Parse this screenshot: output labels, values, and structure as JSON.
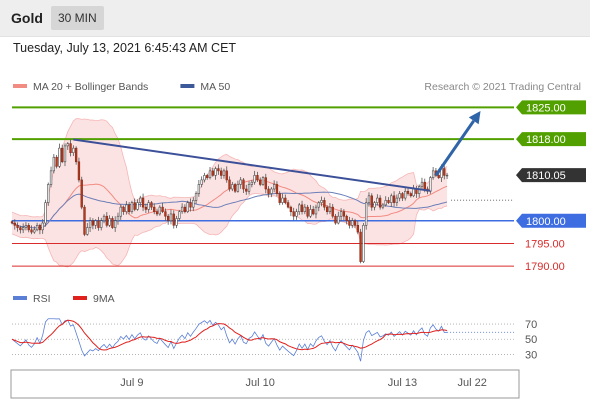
{
  "header": {
    "symbol": "Gold",
    "timeframe": "30 MIN"
  },
  "timestamp": "Tuesday, July 13, 2021 6:45:43 AM CET",
  "legend": [
    {
      "label": "MA 20 + Bollinger Bands",
      "color": "#f28b82"
    },
    {
      "label": "MA 50",
      "color": "#3c5a99"
    }
  ],
  "source": "Research © 2021 Trading Central",
  "chart_data": {
    "type": "candlestick",
    "ylim": [
      1786.5,
      1827.5
    ],
    "xlim": [
      0,
      180
    ],
    "x_ticks": [
      {
        "label": "Jul 9",
        "x": 43
      },
      {
        "label": "Jul 10",
        "x": 89
      },
      {
        "label": "Jul 13",
        "x": 140
      },
      {
        "label": "Jul 22",
        "x": 165
      }
    ],
    "levels": [
      {
        "label": "1825.00",
        "value": 1825.0,
        "kind": "resistance",
        "color": "#52a000"
      },
      {
        "label": "1818.00",
        "value": 1818.0,
        "kind": "resistance",
        "color": "#52a000"
      },
      {
        "label": "1810.05",
        "value": 1810.05,
        "kind": "last",
        "color": "#333333"
      },
      {
        "label": "1800.00",
        "value": 1800.0,
        "kind": "pivot",
        "color": "#3d6de0"
      },
      {
        "label": "1795.00",
        "value": 1795.0,
        "kind": "support",
        "color": "#d92b2b"
      },
      {
        "label": "1790.00",
        "value": 1790.0,
        "kind": "support",
        "color": "#d92b2b"
      }
    ],
    "trendline": {
      "from": [
        22,
        1817.9
      ],
      "to": [
        150,
        1806.6
      ]
    },
    "target_arrow": {
      "from": [
        152,
        1810.0
      ],
      "to": [
        168,
        1824.2
      ]
    },
    "candles": {
      "start": 1799.8,
      "closes": [
        1799.5,
        1799,
        1798.5,
        1798,
        1798.5,
        1799,
        1798,
        1797.5,
        1798,
        1799,
        1798,
        1799.5,
        1804,
        1808,
        1811,
        1814,
        1812,
        1816,
        1813,
        1816.5,
        1817,
        1815,
        1816,
        1813,
        1809,
        1803,
        1797,
        1798.5,
        1800,
        1799,
        1800,
        1798.5,
        1800,
        1801,
        1799,
        1800.5,
        1798.5,
        1800,
        1801,
        1803,
        1802,
        1803.5,
        1802,
        1804,
        1802.5,
        1804,
        1805,
        1803,
        1802.5,
        1804,
        1803,
        1802,
        1801.5,
        1803,
        1802,
        1801,
        1800,
        1801.5,
        1799,
        1800.5,
        1802,
        1803,
        1802,
        1804,
        1803,
        1804.5,
        1806,
        1808,
        1809,
        1810,
        1809.5,
        1811,
        1810,
        1811.5,
        1811,
        1810,
        1811,
        1809,
        1807,
        1808,
        1806.5,
        1808,
        1809,
        1807,
        1806.5,
        1808,
        1808.5,
        1810,
        1809,
        1808,
        1809.5,
        1807,
        1806,
        1807,
        1808,
        1806,
        1804,
        1805,
        1804,
        1803,
        1802,
        1801,
        1802,
        1803.5,
        1802,
        1803,
        1801,
        1802.5,
        1801.5,
        1803,
        1804,
        1804.5,
        1803,
        1802,
        1803,
        1801,
        1799.5,
        1801,
        1802,
        1801,
        1800,
        1799,
        1800,
        1799,
        1797.5,
        1791,
        1799,
        1804,
        1805.5,
        1803,
        1804,
        1805,
        1803,
        1803.5,
        1804.5,
        1804,
        1805.5,
        1804,
        1805,
        1806,
        1805,
        1806.5,
        1806,
        1805.5,
        1807,
        1806,
        1807.5,
        1808.5,
        1807,
        1806.5,
        1809.5,
        1811,
        1810,
        1809.5,
        1811.5,
        1810,
        1810.05
      ]
    },
    "rsi": {
      "ylim": [
        20,
        78
      ],
      "levels": [
        {
          "label": "70",
          "value": 70
        },
        {
          "label": "50",
          "value": 50
        },
        {
          "label": "30",
          "value": 30
        }
      ],
      "legend": [
        {
          "label": "RSI",
          "color": "#5b7fd6"
        },
        {
          "label": "9MA",
          "color": "#e0211d"
        }
      ]
    }
  }
}
